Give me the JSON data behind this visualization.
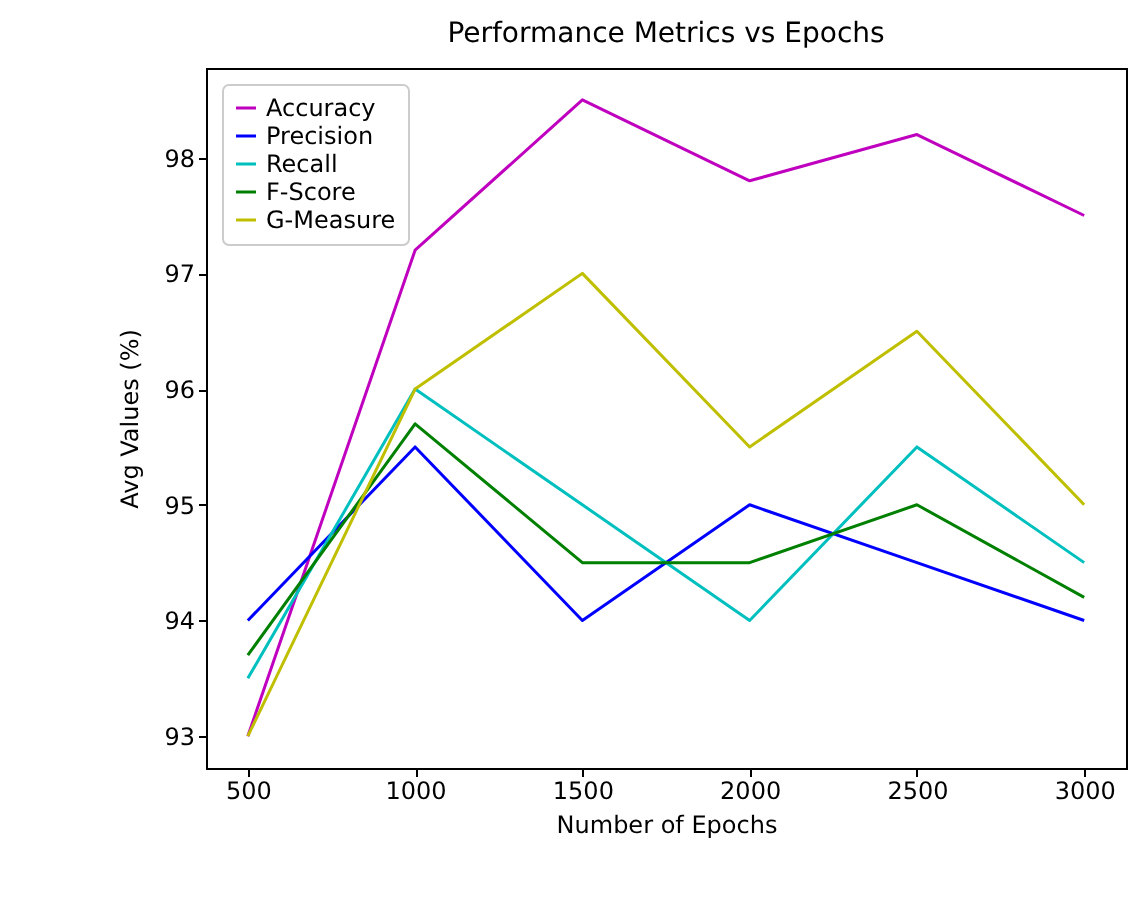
{
  "chart_data": {
    "type": "line",
    "title": "Performance Metrics vs Epochs",
    "xlabel": "Number of Epochs",
    "ylabel": "Avg Values (%)",
    "x": [
      500,
      1000,
      1500,
      2000,
      2500,
      3000
    ],
    "series": [
      {
        "name": "Accuracy",
        "color": "#bf00bf",
        "values": [
          93,
          97.2,
          98.5,
          97.8,
          98.2,
          97.5
        ]
      },
      {
        "name": "Precision",
        "color": "#0000ff",
        "values": [
          94,
          95.5,
          94,
          95,
          94.5,
          94
        ]
      },
      {
        "name": "Recall",
        "color": "#00bfbf",
        "values": [
          93.5,
          96,
          95,
          94,
          95.5,
          94.5
        ]
      },
      {
        "name": "F-Score",
        "color": "#008000",
        "values": [
          93.7,
          95.7,
          94.5,
          94.5,
          95,
          94.2
        ]
      },
      {
        "name": "G-Measure",
        "color": "#bfbf00",
        "values": [
          93,
          96,
          97,
          95.5,
          96.5,
          95
        ]
      }
    ],
    "xlim": [
      375,
      3125
    ],
    "xticks": [
      500,
      1000,
      1500,
      2000,
      2500,
      3000
    ],
    "ylim": [
      92.725,
      98.775
    ],
    "yticks": [
      93,
      94,
      95,
      96,
      97,
      98
    ],
    "legend": "top left",
    "grid": false,
    "marker": "none",
    "line_style": "solid"
  }
}
